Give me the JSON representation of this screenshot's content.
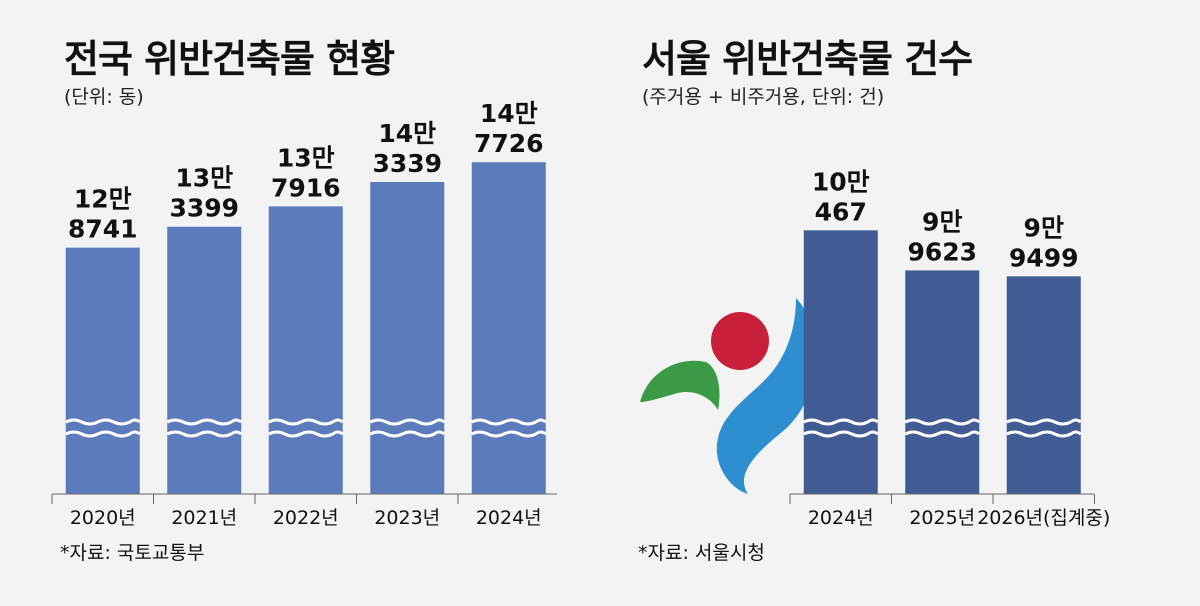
{
  "chart_data": [
    {
      "type": "bar",
      "title": "전국 위반건축물 현황",
      "subtitle": "(단위: 동)",
      "source": "*자료: 국토교통부",
      "categories": [
        "2020년",
        "2021년",
        "2022년",
        "2023년",
        "2024년"
      ],
      "values": [
        128741,
        133399,
        137916,
        143339,
        147726
      ],
      "value_labels": [
        [
          "12만",
          "8741"
        ],
        [
          "13만",
          "3399"
        ],
        [
          "13만",
          "7916"
        ],
        [
          "14만",
          "3339"
        ],
        [
          "14만",
          "7726"
        ]
      ],
      "axis_break": true,
      "bar_color": "#5b7bbd",
      "grid": false
    },
    {
      "type": "bar",
      "title": "서울 위반건축물 건수",
      "subtitle": "(주거용 + 비주거용, 단위: 건)",
      "source": "*자료: 서울시청",
      "categories": [
        "2024년",
        "2025년",
        "2026년(집계중)"
      ],
      "values": [
        100467,
        99623,
        99499
      ],
      "value_labels": [
        [
          "10만",
          "467"
        ],
        [
          "9만",
          "9623"
        ],
        [
          "9만",
          "9499"
        ]
      ],
      "axis_break": true,
      "bar_color": "#415c94",
      "grid": false
    }
  ],
  "logo": {
    "name": "seoul-emblem",
    "colors": {
      "red": "#c8203a",
      "green": "#3a9a45",
      "blue": "#2e8fd0"
    }
  }
}
